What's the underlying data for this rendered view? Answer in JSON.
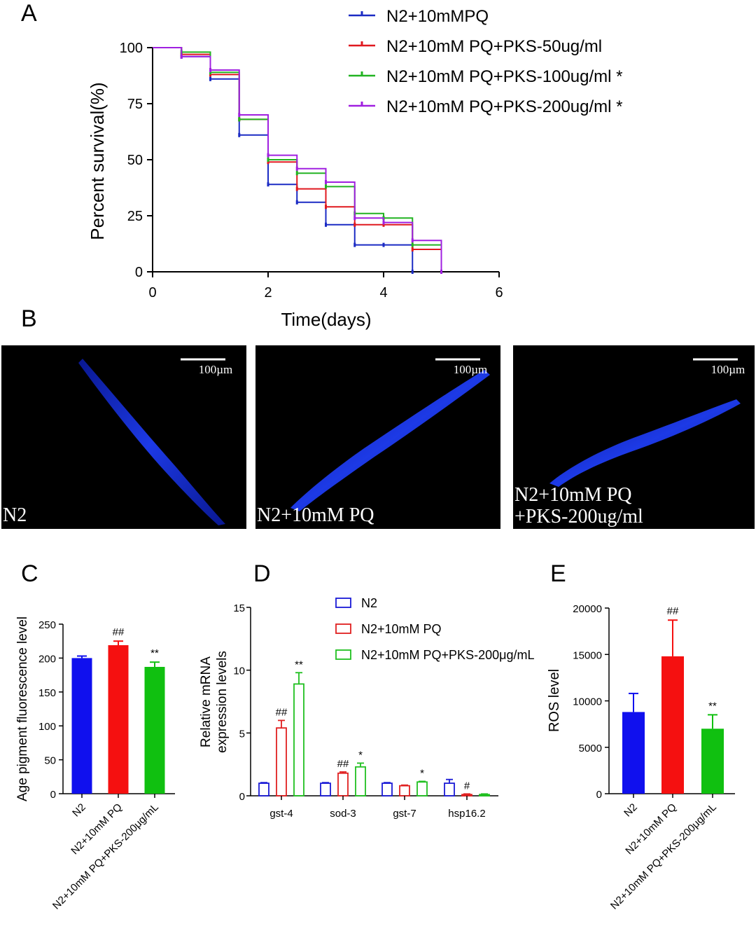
{
  "panels": {
    "A": "A",
    "B": "B",
    "C": "C",
    "D": "D",
    "E": "E"
  },
  "chart_data": [
    {
      "id": "A",
      "type": "line",
      "step": true,
      "xlabel": "Time(days)",
      "ylabel": "Percent survival(%)",
      "xlim": [
        0,
        6
      ],
      "ylim": [
        0,
        100
      ],
      "xticks": [
        "0",
        "2",
        "4",
        "6"
      ],
      "yticks": [
        "0",
        "25",
        "50",
        "75",
        "100"
      ],
      "legend": "top-right",
      "series": [
        {
          "name": "N2+10mMPQ",
          "color": "#1b2bc4",
          "x": [
            0,
            0.5,
            1,
            1.5,
            2,
            2.5,
            3,
            3.5,
            4,
            4.5
          ],
          "y": [
            100,
            96,
            86,
            61,
            39,
            31,
            21,
            12,
            12,
            0
          ]
        },
        {
          "name": "N2+10mM PQ+PKS-50ug/ml",
          "color": "#e0191f",
          "x": [
            0,
            0.5,
            1,
            1.5,
            2,
            2.5,
            3,
            3.5,
            4,
            4.5,
            5
          ],
          "y": [
            100,
            97,
            88,
            68,
            49,
            37,
            29,
            21,
            21,
            10,
            0
          ]
        },
        {
          "name": "N2+10mM PQ+PKS-100ug/ml *",
          "color": "#22b322",
          "x": [
            0,
            0.5,
            1,
            1.5,
            2,
            2.5,
            3,
            3.5,
            4,
            4.5,
            5
          ],
          "y": [
            100,
            98,
            89,
            68,
            50,
            44,
            38,
            26,
            24,
            12,
            0
          ]
        },
        {
          "name": "N2+10mM PQ+PKS-200ug/ml *",
          "color": "#a020e0",
          "x": [
            0,
            0.5,
            1,
            1.5,
            2,
            2.5,
            3,
            3.5,
            4,
            4.5,
            5
          ],
          "y": [
            100,
            96,
            90,
            70,
            52,
            46,
            40,
            24,
            22,
            14,
            0
          ]
        }
      ]
    },
    {
      "id": "B",
      "type": "image",
      "images": [
        {
          "label_lines": [
            "N2"
          ],
          "scale": "100µm"
        },
        {
          "label_lines": [
            "N2+10mM PQ"
          ],
          "scale": "100µm"
        },
        {
          "label_lines": [
            "N2+10mM PQ",
            "+PKS-200ug/ml"
          ],
          "scale": "100µm"
        }
      ]
    },
    {
      "id": "C",
      "type": "bar",
      "ylabel": "Age pigment fluorescence level",
      "ylim": [
        0,
        250
      ],
      "yticks": [
        "0",
        "50",
        "100",
        "150",
        "200",
        "250"
      ],
      "categories": [
        "N2",
        "N2+10mM PQ",
        "N2+10mM PQ+PKS-200μg/mL"
      ],
      "values": [
        200,
        219,
        187
      ],
      "errors": [
        3,
        6,
        7
      ],
      "colors": [
        "#1010ee",
        "#f51010",
        "#10c010"
      ],
      "annotations": [
        "",
        "##",
        "**"
      ]
    },
    {
      "id": "D",
      "type": "bar",
      "ylabel_lines": [
        "Relative mRNA",
        "expression levels"
      ],
      "ylim": [
        0,
        15
      ],
      "yticks": [
        "0",
        "5",
        "10",
        "15"
      ],
      "categories": [
        "gst-4",
        "sod-3",
        "gst-7",
        "hsp16.2"
      ],
      "legend": "top-right",
      "series": [
        {
          "name": "N2",
          "color": "#1a1ad6",
          "values": [
            1.0,
            1.0,
            1.0,
            1.0
          ],
          "errors": [
            0.05,
            0.05,
            0.05,
            0.3
          ],
          "annotations": [
            "",
            "",
            "",
            ""
          ]
        },
        {
          "name": "N2+10mM PQ",
          "color": "#e02020",
          "values": [
            5.4,
            1.8,
            0.8,
            0.1
          ],
          "errors": [
            0.6,
            0.1,
            0.05,
            0.05
          ],
          "annotations": [
            "##",
            "##",
            "",
            "#"
          ]
        },
        {
          "name": "N2+10mM PQ+PKS-200μg/mL",
          "color": "#20c020",
          "values": [
            8.9,
            2.3,
            1.1,
            0.1
          ],
          "errors": [
            0.9,
            0.3,
            0.05,
            0.05
          ],
          "annotations": [
            "**",
            "*",
            "*",
            ""
          ]
        }
      ]
    },
    {
      "id": "E",
      "type": "bar",
      "ylabel": "ROS level",
      "ylim": [
        0,
        20000
      ],
      "yticks": [
        "0",
        "5000",
        "10000",
        "15000",
        "20000"
      ],
      "categories": [
        "N2",
        "N2+10mM PQ",
        "N2+10mM PQ+PKS-200μg/mL"
      ],
      "values": [
        8800,
        14800,
        7000
      ],
      "errors": [
        2000,
        3900,
        1500
      ],
      "colors": [
        "#1010ee",
        "#f51010",
        "#10c010"
      ],
      "annotations": [
        "",
        "##",
        "**"
      ]
    }
  ]
}
